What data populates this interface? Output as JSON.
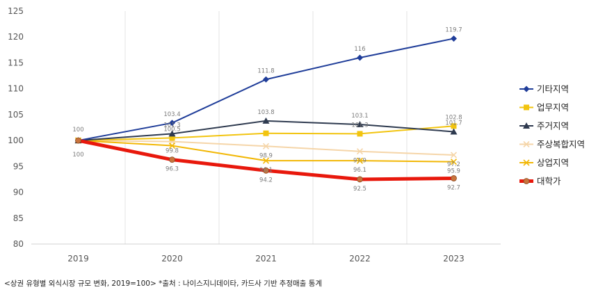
{
  "chart_data": {
    "type": "line",
    "x": [
      "2019",
      "2020",
      "2021",
      "2022",
      "2023"
    ],
    "ylim": [
      80,
      125
    ],
    "yticks": [
      80,
      85,
      90,
      95,
      100,
      105,
      110,
      115,
      120,
      125
    ],
    "grid": "vertical",
    "legend_position": "right",
    "series": [
      {
        "name": "기타지역",
        "values": [
          100,
          103.4,
          111.8,
          116,
          119.7
        ],
        "color": "#1f3d99",
        "marker": "diamond",
        "labels": [
          "100",
          "103.4",
          "111.8",
          "116",
          "119.7"
        ]
      },
      {
        "name": "업무지역",
        "values": [
          100,
          100.5,
          101.4,
          101.3,
          102.8
        ],
        "color": "#f2c40f",
        "marker": "square",
        "labels": [
          "",
          "100.5",
          "",
          "101.3",
          "102.8"
        ]
      },
      {
        "name": "주거지역",
        "values": [
          100,
          101.3,
          103.8,
          103.1,
          101.7
        ],
        "color": "#2e3a4f",
        "marker": "triangle",
        "labels": [
          "",
          "101.3",
          "103.8",
          "103.1",
          "101.7"
        ]
      },
      {
        "name": "주상복합지역",
        "values": [
          100,
          99.8,
          98.9,
          97.9,
          97.2
        ],
        "color": "#f5d5a8",
        "marker": "x",
        "labels": [
          "",
          "99.8",
          "98.9",
          "97.9",
          "97.2"
        ]
      },
      {
        "name": "상업지역",
        "values": [
          100,
          99.0,
          96.1,
          96.1,
          95.9
        ],
        "color": "#f2b705",
        "marker": "x",
        "labels": [
          "",
          "",
          "96.1",
          "96.1",
          "95.9"
        ]
      },
      {
        "name": "대학가",
        "values": [
          100,
          96.3,
          94.2,
          92.5,
          92.7
        ],
        "color": "#e8180c",
        "marker": "circle",
        "labels": [
          "100",
          "96.3",
          "94.2",
          "92.5",
          "92.7"
        ]
      }
    ]
  },
  "footer": {
    "source_note": "<상권 유형별 외식시장 규모 변화, 2019=100> *출처 : 나이스지니데이타, 카드사 기반 추정매출 통계"
  }
}
